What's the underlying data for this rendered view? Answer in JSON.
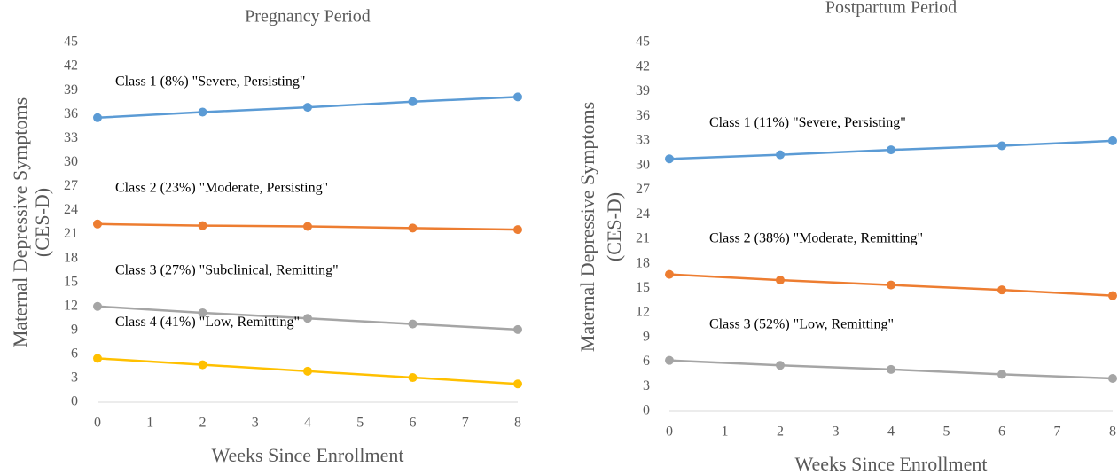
{
  "chart_data": [
    {
      "type": "line",
      "title": "Pregnancy Period",
      "xlabel": "Weeks Since Enrollment",
      "ylabel": [
        "Maternal Depressive Symptoms",
        "(CES-D)"
      ],
      "x": [
        0,
        2,
        4,
        6,
        8
      ],
      "xlim": [
        0,
        8
      ],
      "xticks": [
        0,
        1,
        2,
        3,
        4,
        5,
        6,
        7,
        8
      ],
      "ylim": [
        0,
        45
      ],
      "yticks": [
        0,
        3,
        6,
        9,
        12,
        15,
        18,
        21,
        24,
        27,
        30,
        33,
        36,
        39,
        42,
        45
      ],
      "grid": false,
      "series": [
        {
          "name": "Class 1 (8%) \"Severe, Persisting\"",
          "color": "#5b9bd5",
          "values": [
            35.6,
            36.3,
            36.9,
            37.6,
            38.2
          ]
        },
        {
          "name": "Class 2 (23%) \"Moderate, Persisting\"",
          "color": "#ed7d31",
          "values": [
            22.3,
            22.1,
            22.0,
            21.8,
            21.6
          ]
        },
        {
          "name": "Class 3 (27%) \"Subclinical, Remitting\"",
          "color": "#a5a5a5",
          "values": [
            12.0,
            11.2,
            10.5,
            9.8,
            9.1
          ]
        },
        {
          "name": "Class 4 (41%) \"Low, Remitting\"",
          "color": "#ffc000",
          "values": [
            5.5,
            4.7,
            3.9,
            3.1,
            2.3
          ]
        }
      ]
    },
    {
      "type": "line",
      "title": "Postpartum Period",
      "xlabel": "Weeks Since Enrollment",
      "ylabel": [
        "Maternal Depressive Symptoms",
        "(CES-D)"
      ],
      "x": [
        0,
        2,
        4,
        6,
        8
      ],
      "xlim": [
        0,
        8
      ],
      "xticks": [
        0,
        1,
        2,
        3,
        4,
        5,
        6,
        7,
        8
      ],
      "ylim": [
        0,
        45
      ],
      "yticks": [
        0,
        3,
        6,
        9,
        12,
        15,
        18,
        21,
        24,
        27,
        30,
        33,
        36,
        39,
        42,
        45
      ],
      "grid": false,
      "series": [
        {
          "name": "Class 1 (11%) \"Severe, Persisting\"",
          "color": "#5b9bd5",
          "values": [
            30.8,
            31.3,
            31.9,
            32.4,
            33.0
          ]
        },
        {
          "name": "Class 2 (38%) \"Moderate, Remitting\"",
          "color": "#ed7d31",
          "values": [
            16.7,
            16.0,
            15.4,
            14.8,
            14.1
          ]
        },
        {
          "name": "Class 3 (52%) \"Low, Remitting\"",
          "color": "#a5a5a5",
          "values": [
            6.2,
            5.6,
            5.1,
            4.5,
            4.0
          ]
        }
      ]
    }
  ]
}
